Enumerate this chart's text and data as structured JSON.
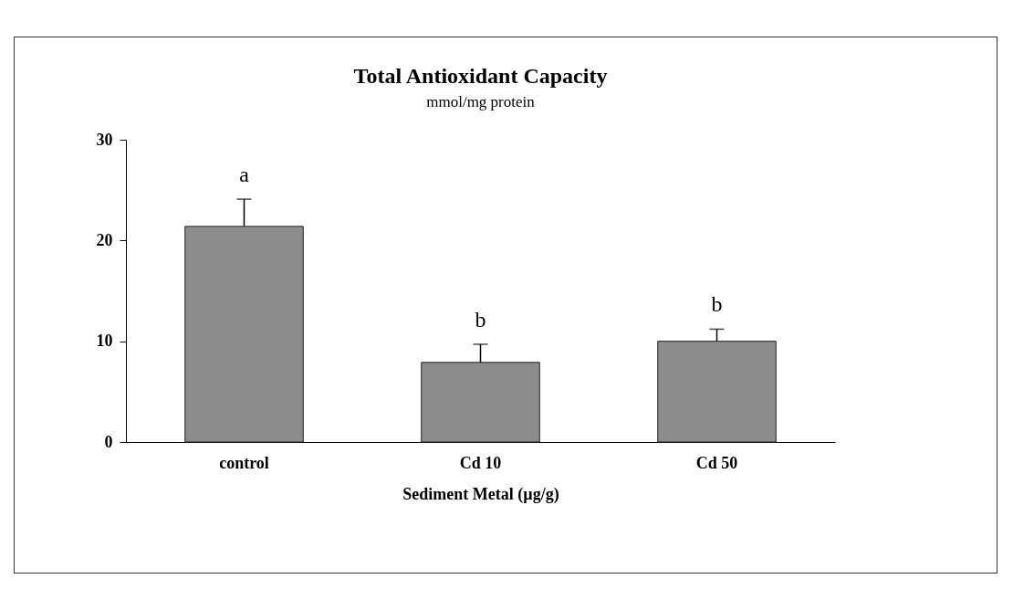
{
  "chart_data": {
    "type": "bar",
    "title": "Total Antioxidant Capacity",
    "subtitle": "mmol/mg protein",
    "xlabel": "Sediment Metal (µg/g)",
    "categories": [
      "control",
      "Cd 10",
      "Cd 50"
    ],
    "values": [
      21.4,
      7.9,
      10.0
    ],
    "errors": [
      [
        21.4,
        24.1
      ],
      [
        7.9,
        9.7
      ],
      [
        10.0,
        11.2
      ]
    ],
    "color": "#8c8c8c",
    "ylim": [
      0,
      30
    ],
    "yticks": [
      0,
      10,
      20,
      30
    ],
    "grid": false,
    "annotations": [
      "a",
      "b",
      "b"
    ]
  }
}
